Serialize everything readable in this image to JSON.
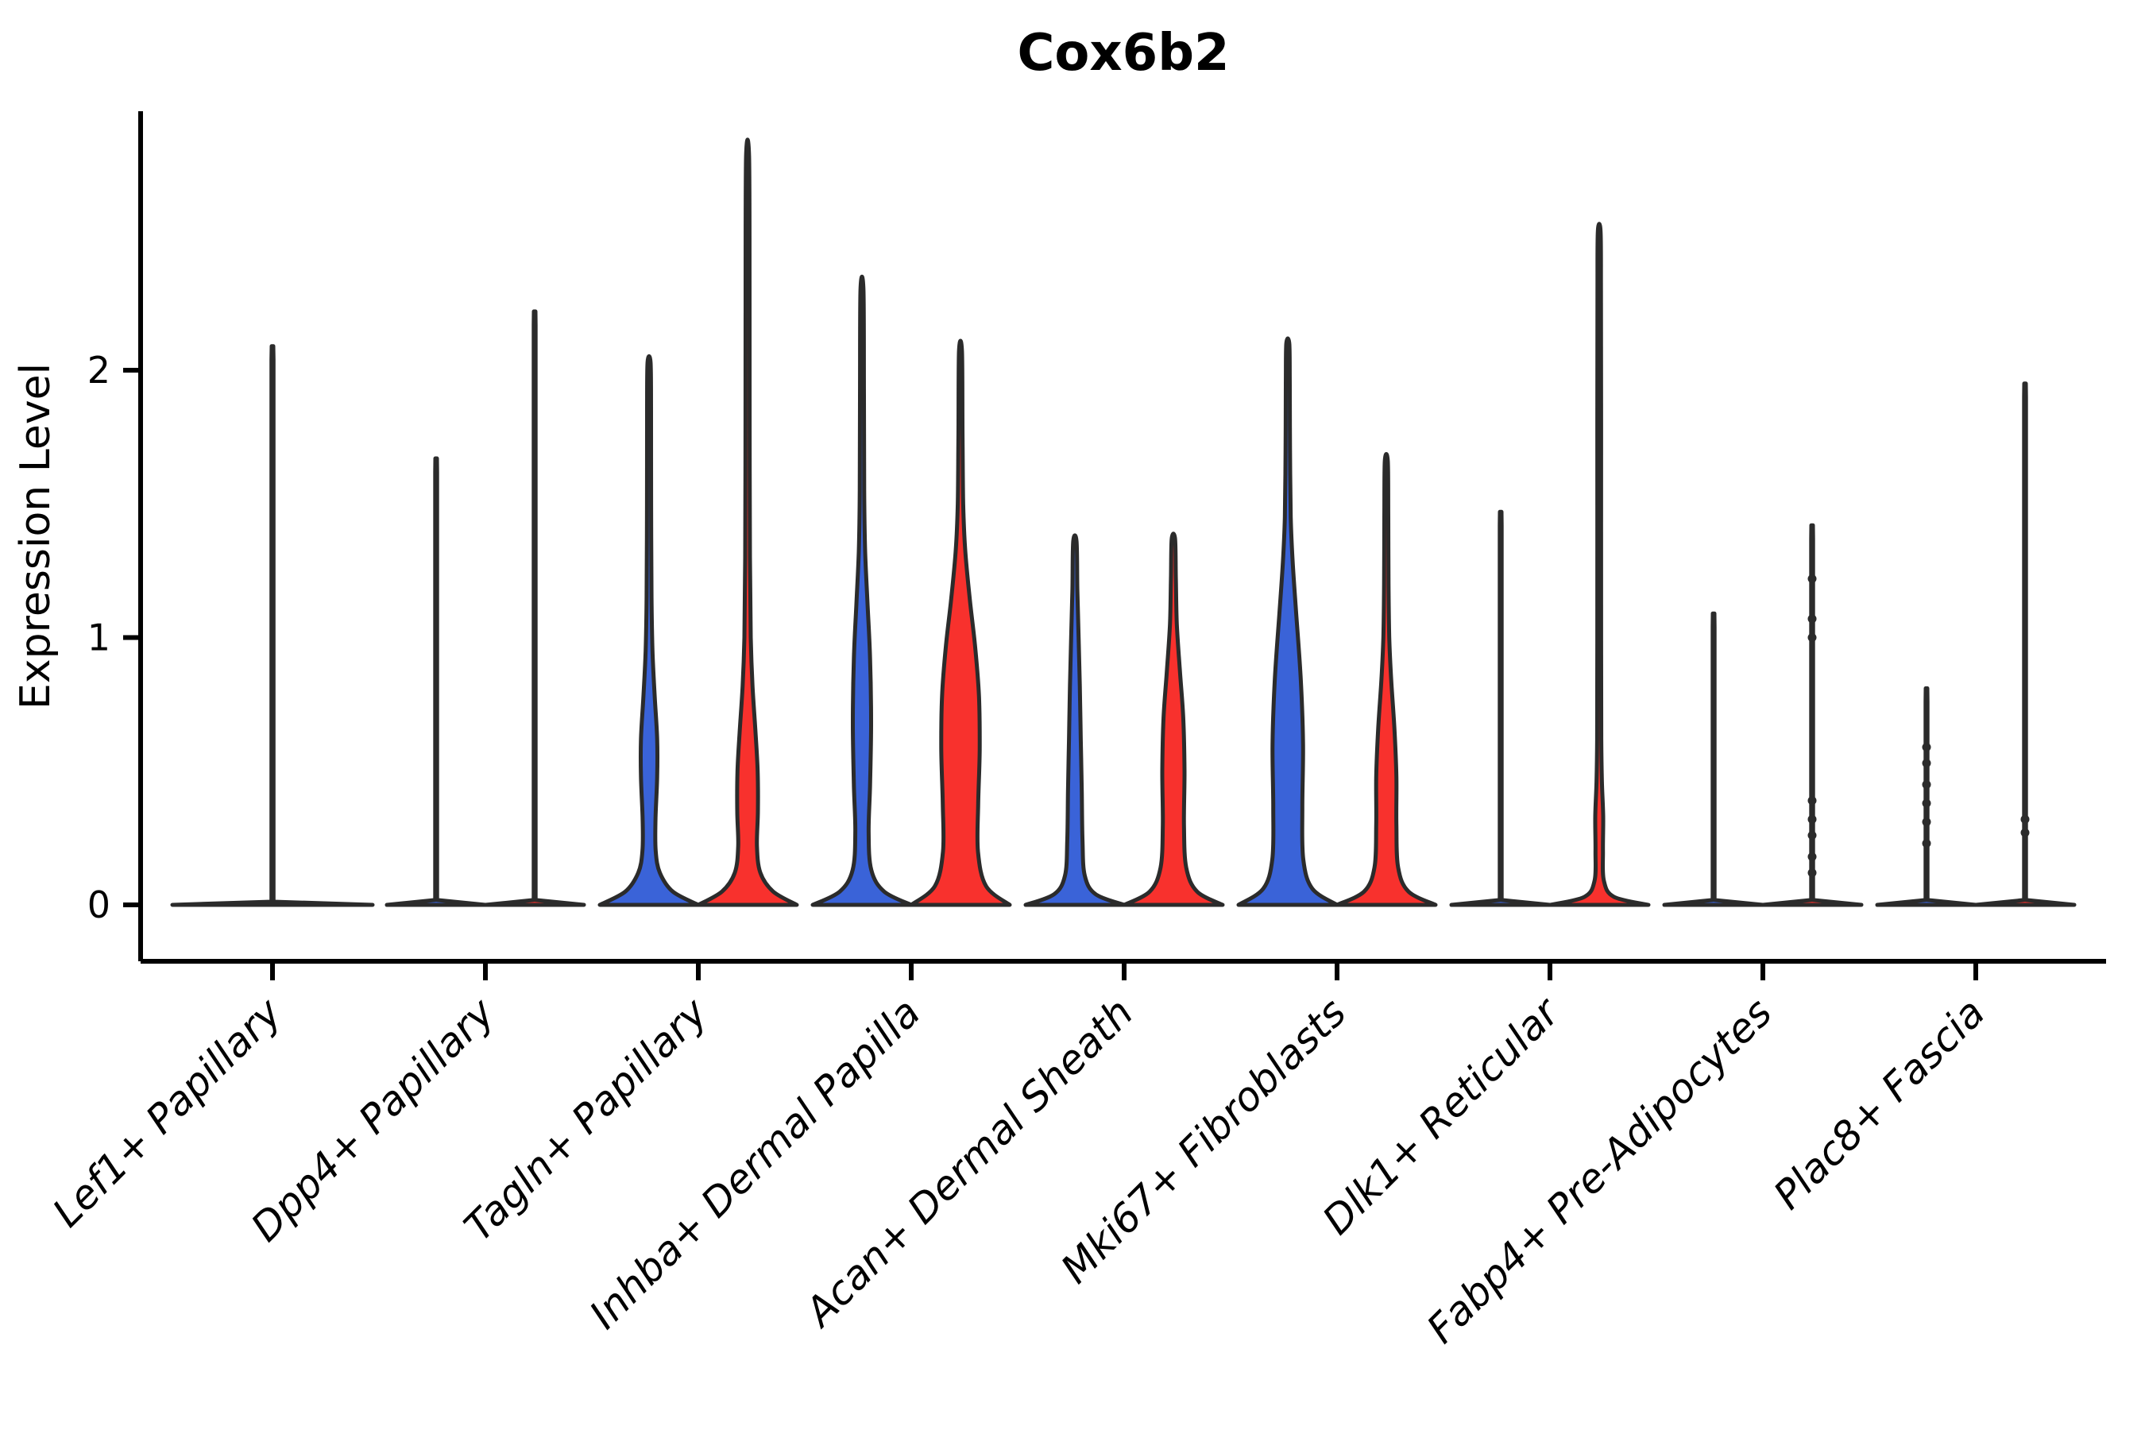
{
  "figure": {
    "title": "Cox6b2"
  },
  "chart_data": {
    "type": "violin",
    "title": "Cox6b2",
    "ylabel": "Expression Level",
    "xlabel": "",
    "yticks": [
      "0",
      "1",
      "2"
    ],
    "ytick_values": [
      0,
      1,
      2
    ],
    "ylim": [
      -0.21,
      2.97
    ],
    "grid": false,
    "legend_position": "none",
    "split_groups": [
      {
        "id": "blue",
        "color": "#3A63D8"
      },
      {
        "id": "red",
        "color": "#F8312D"
      }
    ],
    "outline_color": "#2B2B2B",
    "categories": [
      "Lef1+ Papillary",
      "Dpp4+ Papillary",
      "Tagln+ Papillary",
      "Inhba+ Dermal Papilla",
      "Acan+ Dermal Sheath",
      "Mki67+ Fibroblasts",
      "Dlk1+ Reticular",
      "Fabp4+ Pre-Adipocytes",
      "Plac8+ Fascia"
    ],
    "violins": [
      {
        "cat": 0,
        "side": "center",
        "group": "none",
        "width": "full",
        "max_expression": 2.09,
        "smooth": false,
        "knots": [],
        "profile": [
          [
            0,
            1.0
          ],
          [
            0.012,
            0.01
          ],
          [
            2.04,
            0.01
          ],
          [
            2.09,
            0.008
          ]
        ]
      },
      {
        "cat": 1,
        "side": "left",
        "group": "blue",
        "width": "half",
        "max_expression": 1.67,
        "smooth": false,
        "knots": [],
        "profile": [
          [
            0,
            1.0
          ],
          [
            0.018,
            0.02
          ],
          [
            1.62,
            0.02
          ],
          [
            1.67,
            0.016
          ]
        ]
      },
      {
        "cat": 1,
        "side": "right",
        "group": "red",
        "width": "half",
        "max_expression": 2.22,
        "smooth": false,
        "knots": [],
        "profile": [
          [
            0,
            1.0
          ],
          [
            0.018,
            0.02
          ],
          [
            2.17,
            0.02
          ],
          [
            2.22,
            0.016
          ]
        ]
      },
      {
        "cat": 2,
        "side": "left",
        "group": "blue",
        "width": "half",
        "max_expression": 2.03,
        "smooth": true,
        "knots": [],
        "profile": [
          [
            0,
            1.0
          ],
          [
            0.05,
            0.48
          ],
          [
            0.12,
            0.22
          ],
          [
            0.2,
            0.135
          ],
          [
            0.32,
            0.13
          ],
          [
            0.48,
            0.165
          ],
          [
            0.62,
            0.165
          ],
          [
            0.78,
            0.115
          ],
          [
            0.95,
            0.07
          ],
          [
            1.15,
            0.05
          ],
          [
            1.5,
            0.042
          ],
          [
            1.85,
            0.04
          ],
          [
            2.03,
            0.03
          ]
        ]
      },
      {
        "cat": 2,
        "side": "right",
        "group": "red",
        "width": "half",
        "max_expression": 2.8,
        "smooth": true,
        "knots": [],
        "profile": [
          [
            0,
            1.0
          ],
          [
            0.05,
            0.52
          ],
          [
            0.12,
            0.26
          ],
          [
            0.22,
            0.19
          ],
          [
            0.35,
            0.21
          ],
          [
            0.5,
            0.205
          ],
          [
            0.65,
            0.16
          ],
          [
            0.82,
            0.1
          ],
          [
            1.0,
            0.065
          ],
          [
            1.3,
            0.048
          ],
          [
            1.8,
            0.042
          ],
          [
            2.3,
            0.04
          ],
          [
            2.8,
            0.03
          ]
        ]
      },
      {
        "cat": 3,
        "side": "left",
        "group": "blue",
        "width": "half",
        "max_expression": 2.3,
        "smooth": true,
        "knots": [],
        "profile": [
          [
            0,
            1.0
          ],
          [
            0.05,
            0.45
          ],
          [
            0.13,
            0.19
          ],
          [
            0.27,
            0.135
          ],
          [
            0.45,
            0.165
          ],
          [
            0.68,
            0.185
          ],
          [
            0.92,
            0.165
          ],
          [
            1.12,
            0.115
          ],
          [
            1.32,
            0.065
          ],
          [
            1.55,
            0.045
          ],
          [
            1.9,
            0.04
          ],
          [
            2.3,
            0.03
          ]
        ]
      },
      {
        "cat": 3,
        "side": "right",
        "group": "red",
        "width": "half",
        "max_expression": 2.07,
        "smooth": true,
        "knots": [],
        "profile": [
          [
            0,
            1.0
          ],
          [
            0.07,
            0.52
          ],
          [
            0.2,
            0.355
          ],
          [
            0.38,
            0.36
          ],
          [
            0.58,
            0.39
          ],
          [
            0.78,
            0.375
          ],
          [
            0.97,
            0.295
          ],
          [
            1.15,
            0.185
          ],
          [
            1.33,
            0.095
          ],
          [
            1.5,
            0.055
          ],
          [
            1.75,
            0.042
          ],
          [
            2.07,
            0.03
          ]
        ]
      },
      {
        "cat": 4,
        "side": "left",
        "group": "blue",
        "width": "half",
        "max_expression": 1.36,
        "smooth": true,
        "knots": [],
        "profile": [
          [
            0,
            1.0
          ],
          [
            0.04,
            0.42
          ],
          [
            0.11,
            0.2
          ],
          [
            0.24,
            0.155
          ],
          [
            0.42,
            0.14
          ],
          [
            0.62,
            0.12
          ],
          [
            0.82,
            0.1
          ],
          [
            1.0,
            0.075
          ],
          [
            1.18,
            0.05
          ],
          [
            1.36,
            0.034
          ]
        ]
      },
      {
        "cat": 4,
        "side": "right",
        "group": "red",
        "width": "half",
        "max_expression": 1.37,
        "smooth": true,
        "knots": [],
        "profile": [
          [
            0,
            1.0
          ],
          [
            0.05,
            0.48
          ],
          [
            0.14,
            0.26
          ],
          [
            0.3,
            0.215
          ],
          [
            0.5,
            0.225
          ],
          [
            0.7,
            0.2
          ],
          [
            0.88,
            0.13
          ],
          [
            1.05,
            0.07
          ],
          [
            1.22,
            0.05
          ],
          [
            1.37,
            0.034
          ]
        ]
      },
      {
        "cat": 5,
        "side": "left",
        "group": "blue",
        "width": "half",
        "max_expression": 2.1,
        "smooth": true,
        "knots": [],
        "profile": [
          [
            0,
            1.0
          ],
          [
            0.06,
            0.5
          ],
          [
            0.17,
            0.315
          ],
          [
            0.36,
            0.295
          ],
          [
            0.6,
            0.31
          ],
          [
            0.84,
            0.265
          ],
          [
            1.08,
            0.175
          ],
          [
            1.28,
            0.1
          ],
          [
            1.45,
            0.06
          ],
          [
            1.7,
            0.045
          ],
          [
            1.95,
            0.04
          ],
          [
            2.1,
            0.03
          ]
        ]
      },
      {
        "cat": 5,
        "side": "right",
        "group": "red",
        "width": "half",
        "max_expression": 1.66,
        "smooth": true,
        "knots": [],
        "profile": [
          [
            0,
            1.0
          ],
          [
            0.05,
            0.45
          ],
          [
            0.14,
            0.24
          ],
          [
            0.3,
            0.205
          ],
          [
            0.48,
            0.205
          ],
          [
            0.66,
            0.165
          ],
          [
            0.84,
            0.1
          ],
          [
            1.0,
            0.06
          ],
          [
            1.2,
            0.045
          ],
          [
            1.45,
            0.04
          ],
          [
            1.66,
            0.03
          ]
        ]
      },
      {
        "cat": 6,
        "side": "left",
        "group": "blue",
        "width": "half",
        "max_expression": 1.47,
        "smooth": false,
        "knots": [],
        "profile": [
          [
            0,
            1.0
          ],
          [
            0.018,
            0.02
          ],
          [
            1.42,
            0.02
          ],
          [
            1.47,
            0.016
          ]
        ]
      },
      {
        "cat": 6,
        "side": "right",
        "group": "red",
        "width": "half",
        "max_expression": 2.52,
        "smooth": true,
        "knots": [],
        "profile": [
          [
            0,
            1.0
          ],
          [
            0.03,
            0.3
          ],
          [
            0.09,
            0.095
          ],
          [
            0.2,
            0.075
          ],
          [
            0.33,
            0.08
          ],
          [
            0.46,
            0.055
          ],
          [
            0.62,
            0.042
          ],
          [
            1.0,
            0.038
          ],
          [
            1.8,
            0.038
          ],
          [
            2.3,
            0.036
          ],
          [
            2.52,
            0.028
          ]
        ]
      },
      {
        "cat": 7,
        "side": "left",
        "group": "blue",
        "width": "half",
        "max_expression": 1.09,
        "smooth": false,
        "knots": [],
        "profile": [
          [
            0,
            1.0
          ],
          [
            0.018,
            0.02
          ],
          [
            1.04,
            0.02
          ],
          [
            1.09,
            0.016
          ]
        ]
      },
      {
        "cat": 7,
        "side": "right",
        "group": "red",
        "width": "half",
        "max_expression": 1.42,
        "smooth": false,
        "knots": [
          1.22,
          1.07,
          1.0,
          0.39,
          0.32,
          0.26,
          0.18,
          0.12
        ],
        "profile": [
          [
            0,
            1.0
          ],
          [
            0.018,
            0.02
          ],
          [
            1.37,
            0.02
          ],
          [
            1.42,
            0.016
          ]
        ]
      },
      {
        "cat": 8,
        "side": "left",
        "group": "blue",
        "width": "half",
        "max_expression": 0.81,
        "smooth": false,
        "knots": [
          0.59,
          0.53,
          0.45,
          0.38,
          0.31,
          0.23
        ],
        "profile": [
          [
            0,
            1.0
          ],
          [
            0.018,
            0.02
          ],
          [
            0.76,
            0.02
          ],
          [
            0.81,
            0.016
          ]
        ]
      },
      {
        "cat": 8,
        "side": "right",
        "group": "red",
        "width": "half",
        "max_expression": 1.95,
        "smooth": false,
        "knots": [
          0.32,
          0.27
        ],
        "profile": [
          [
            0,
            1.0
          ],
          [
            0.018,
            0.02
          ],
          [
            1.9,
            0.02
          ],
          [
            1.95,
            0.016
          ]
        ]
      }
    ]
  }
}
